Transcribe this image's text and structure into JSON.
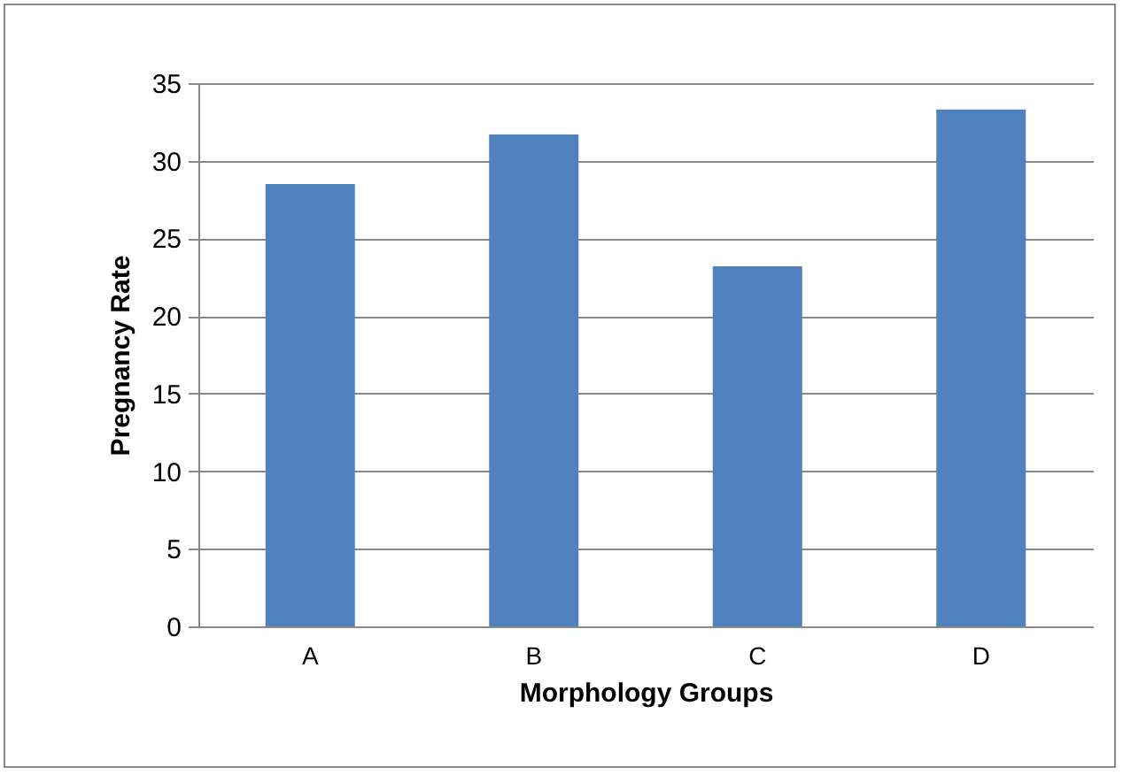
{
  "chart_data": {
    "type": "bar",
    "xlabel": "Morphology Groups",
    "ylabel": "Pregnancy Rate",
    "categories": [
      "A",
      "B",
      "C",
      "D"
    ],
    "values": [
      28.5,
      31.7,
      23.2,
      33.3
    ],
    "color": "#4f81bd",
    "ylim": [
      0,
      35
    ],
    "yticks": [
      0,
      5,
      10,
      15,
      20,
      25,
      30,
      35
    ],
    "grid": "y"
  }
}
